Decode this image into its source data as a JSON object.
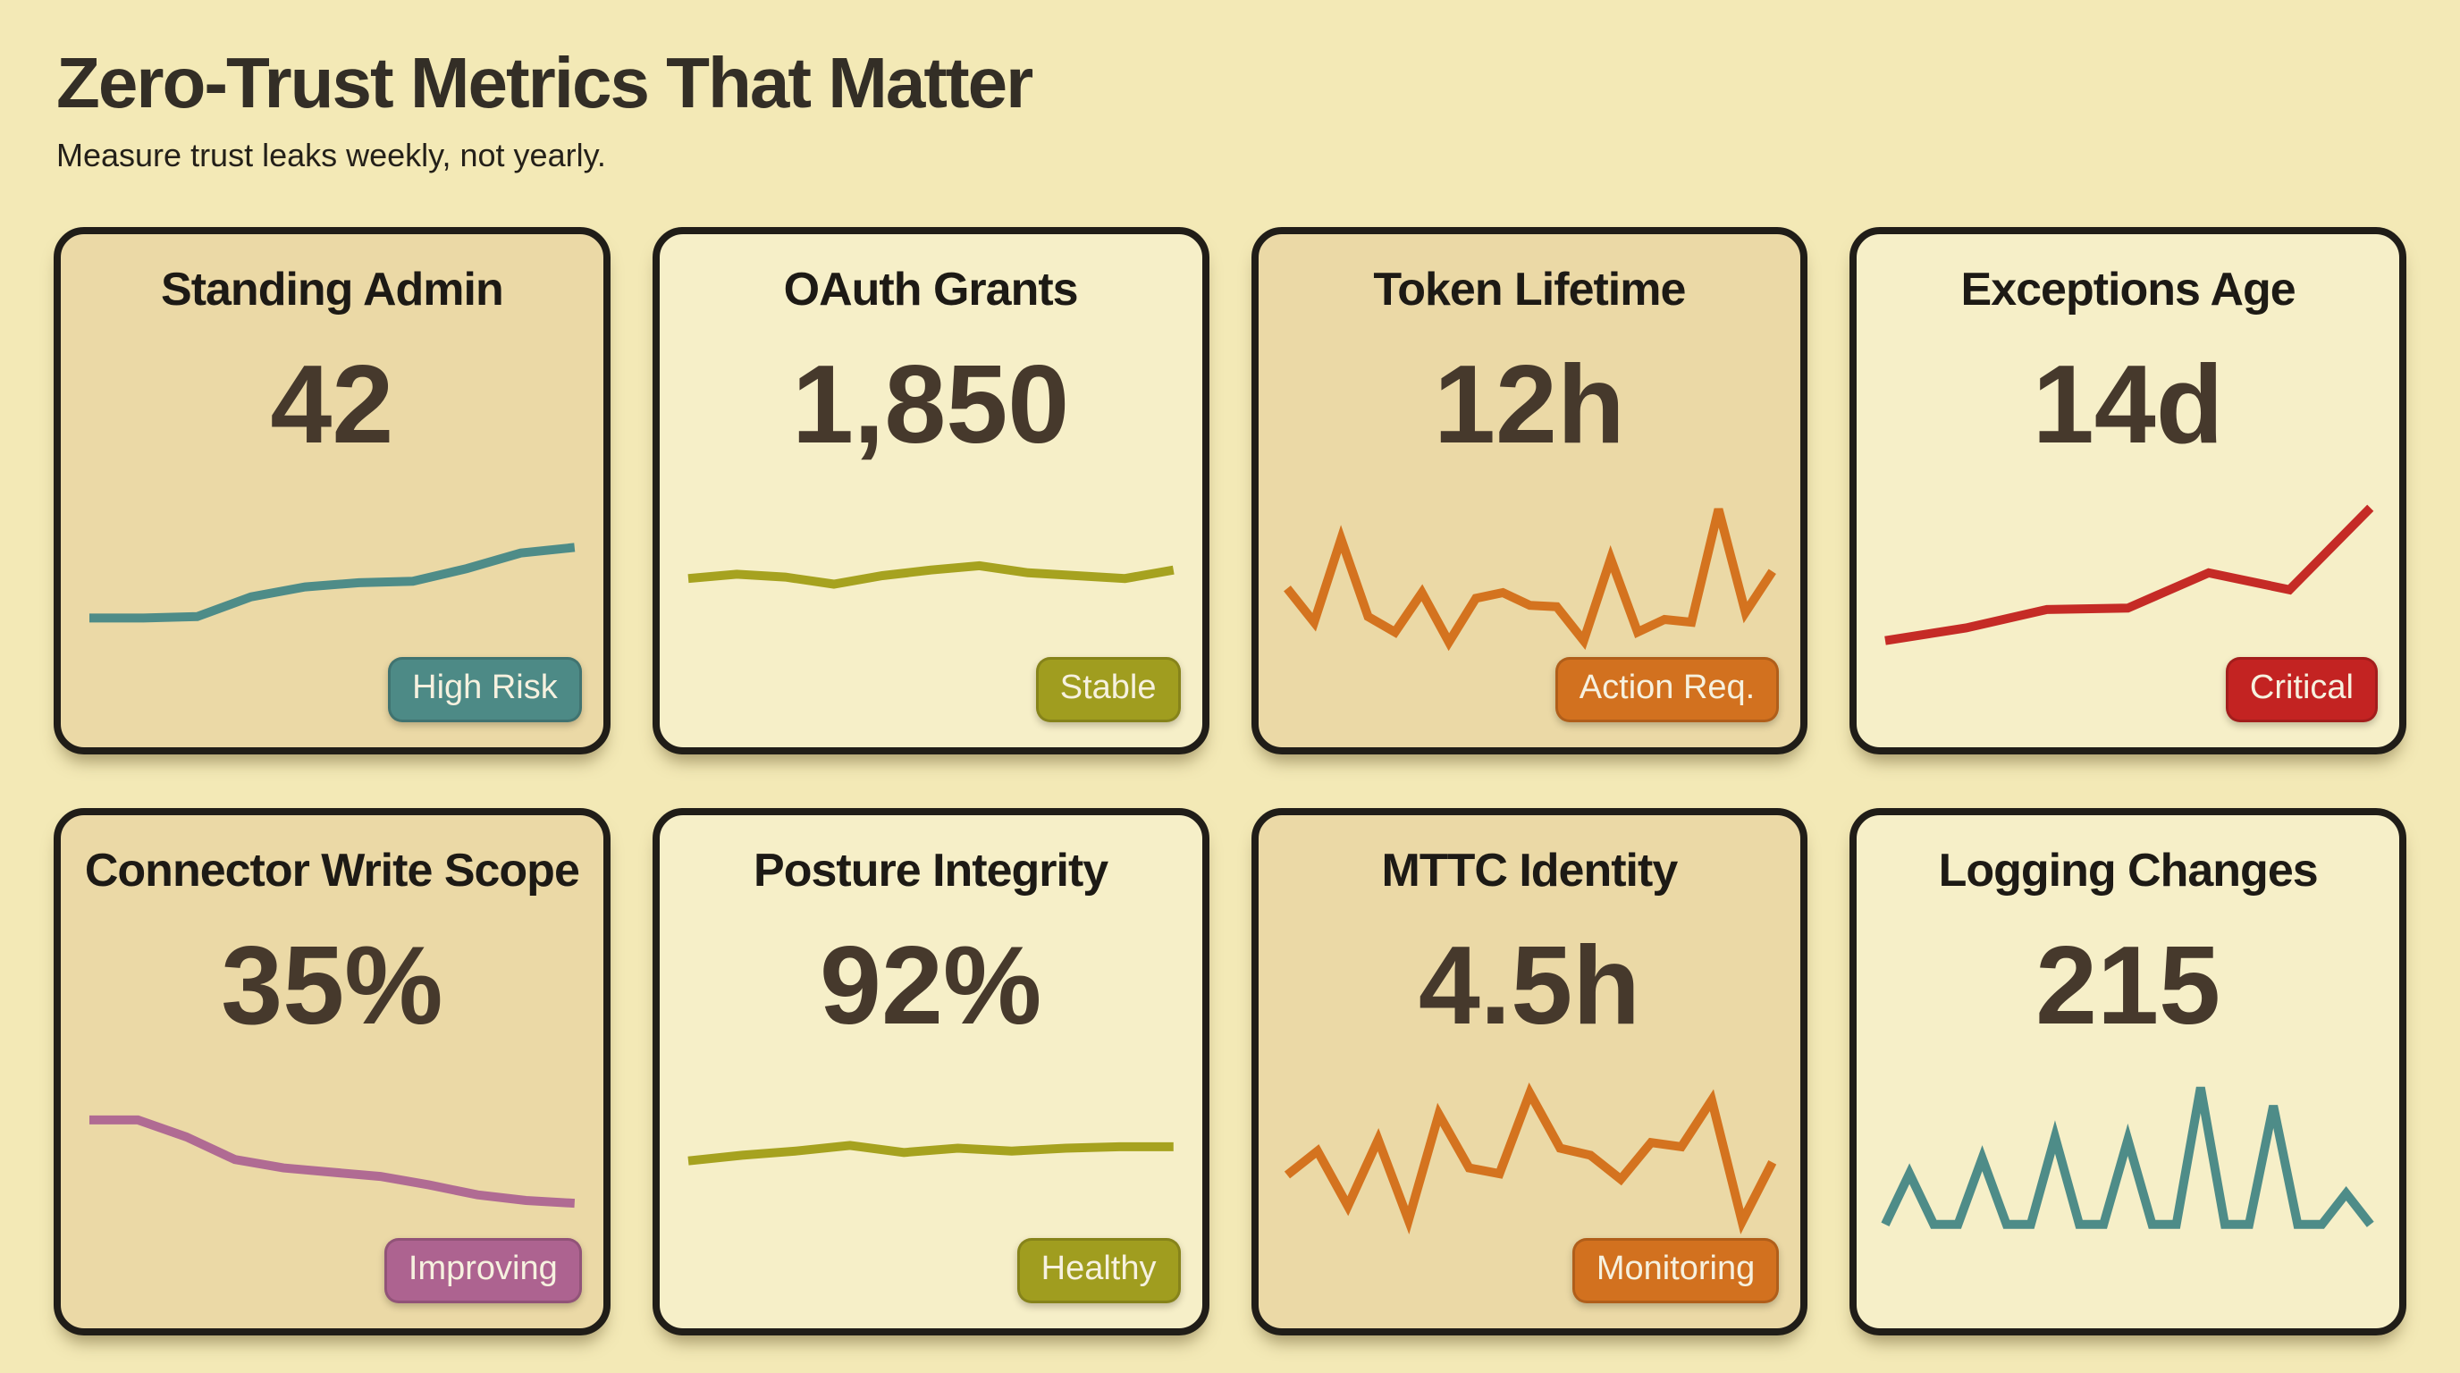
{
  "header": {
    "title": "Zero-Trust Metrics That Matter",
    "subtitle": "Measure trust leaks weekly, not yearly."
  },
  "colors": {
    "page_bg": "#f3e9b6",
    "card_tan": "#ebd9a6",
    "card_cream": "#f6efc8",
    "card_border": "#201d18",
    "header_title_text": "#332e26",
    "subtitle_text": "#242019",
    "card_title_text": "#1d1a15",
    "value_text": "#46392c",
    "badge_text": "#f6f1df",
    "tones": {
      "teal": {
        "line": "#4e8c88",
        "badge": "#4d8a86"
      },
      "olive": {
        "line": "#a6a21f",
        "badge": "#a09d1f"
      },
      "orange": {
        "line": "#d4731f",
        "badge": "#d2711f"
      },
      "red": {
        "line": "#c52b26",
        "badge": "#c32322"
      },
      "mauve": {
        "line": "#b06b93",
        "badge": "#ad6390"
      }
    }
  },
  "chart_data": [
    {
      "type": "line",
      "title": "Standing Admin",
      "value": "42",
      "status_badge": "High Risk",
      "tone": "teal",
      "surface": "tan",
      "ylim": [
        0,
        10
      ],
      "grid": false,
      "legend": "none",
      "values": [
        2.0,
        2.0,
        2.1,
        3.5,
        4.2,
        4.5,
        4.6,
        5.5,
        6.6,
        7.0
      ]
    },
    {
      "type": "line",
      "title": "OAuth Grants",
      "value": "1,850",
      "status_badge": "Stable",
      "tone": "olive",
      "surface": "cream",
      "ylim": [
        0,
        10
      ],
      "grid": false,
      "legend": "none",
      "values": [
        4.8,
        5.1,
        4.9,
        4.4,
        5.0,
        5.4,
        5.7,
        5.2,
        5.0,
        4.8,
        5.4
      ]
    },
    {
      "type": "line",
      "title": "Token Lifetime",
      "value": "12h",
      "status_badge": "Action Req.",
      "tone": "orange",
      "surface": "tan",
      "ylim": [
        0,
        10
      ],
      "grid": false,
      "legend": "none",
      "values": [
        4.1,
        1.7,
        7.6,
        2.1,
        1.0,
        3.8,
        0.3,
        3.4,
        3.8,
        2.9,
        2.8,
        0.4,
        6.2,
        1.0,
        1.9,
        1.7,
        9.7,
        2.4,
        5.3
      ]
    },
    {
      "type": "line",
      "title": "Exceptions Age",
      "value": "14d",
      "status_badge": "Critical",
      "tone": "red",
      "surface": "cream",
      "ylim": [
        0,
        10
      ],
      "grid": false,
      "legend": "none",
      "values": [
        0.4,
        1.3,
        2.6,
        2.7,
        5.2,
        4.0,
        9.8
      ]
    },
    {
      "type": "line",
      "title": "Connector Write Scope",
      "value": "35%",
      "status_badge": "Improving",
      "tone": "mauve",
      "surface": "tan",
      "ylim": [
        0,
        10
      ],
      "grid": false,
      "legend": "none",
      "values": [
        7.6,
        7.6,
        6.4,
        4.8,
        4.2,
        3.9,
        3.6,
        3.0,
        2.3,
        1.9,
        1.7
      ]
    },
    {
      "type": "line",
      "title": "Posture Integrity",
      "value": "92%",
      "status_badge": "Healthy",
      "tone": "olive",
      "surface": "cream",
      "ylim": [
        0,
        10
      ],
      "grid": false,
      "legend": "none",
      "values": [
        4.7,
        5.1,
        5.4,
        5.8,
        5.3,
        5.6,
        5.4,
        5.6,
        5.7,
        5.7
      ]
    },
    {
      "type": "line",
      "title": "MTTC Identity",
      "value": "4.5h",
      "status_badge": "Monitoring",
      "tone": "orange",
      "surface": "tan",
      "ylim": [
        0,
        10
      ],
      "grid": false,
      "legend": "none",
      "values": [
        3.7,
        5.4,
        1.5,
        6.2,
        0.5,
        8.0,
        4.2,
        3.8,
        9.5,
        5.6,
        5.1,
        3.4,
        6.0,
        5.7,
        9.0,
        0.4,
        4.6
      ]
    },
    {
      "type": "line",
      "title": "Logging Changes",
      "value": "215",
      "status_badge": null,
      "tone": "teal",
      "surface": "cream",
      "ylim": [
        0,
        10
      ],
      "grid": false,
      "legend": "none",
      "values": [
        0.2,
        3.8,
        0.2,
        0.2,
        4.9,
        0.2,
        0.2,
        6.4,
        0.2,
        0.2,
        6.2,
        0.2,
        0.2,
        9.9,
        0.2,
        0.2,
        8.6,
        0.2,
        0.2,
        2.4,
        0.2
      ]
    }
  ]
}
